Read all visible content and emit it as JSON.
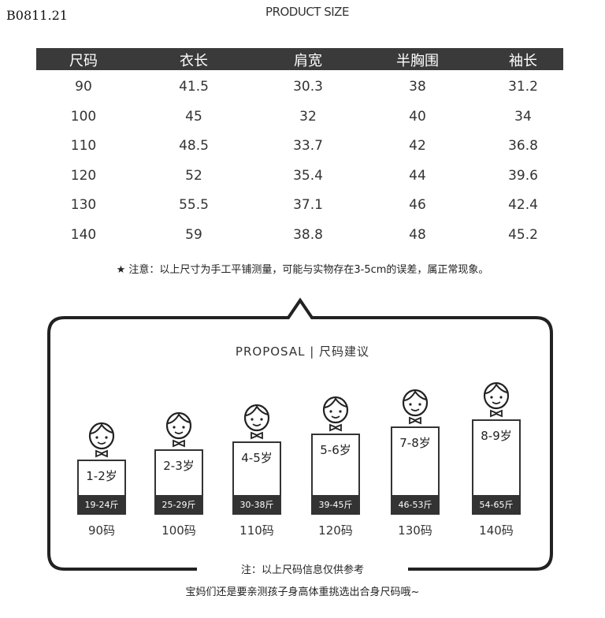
{
  "code": "B0811.21",
  "title": "PRODUCT SIZE",
  "table": {
    "headers": [
      "尺码",
      "衣长",
      "肩宽",
      "半胸围",
      "袖长"
    ],
    "rows": [
      [
        "90",
        "41.5",
        "30.3",
        "38",
        "31.2"
      ],
      [
        "100",
        "45",
        "32",
        "40",
        "34"
      ],
      [
        "110",
        "48.5",
        "33.7",
        "42",
        "36.8"
      ],
      [
        "120",
        "52",
        "35.4",
        "44",
        "39.6"
      ],
      [
        "130",
        "55.5",
        "37.1",
        "46",
        "42.4"
      ],
      [
        "140",
        "59",
        "38.8",
        "48",
        "45.2"
      ]
    ]
  },
  "note": "注意：以上尺寸为手工平铺测量，可能与实物存在3-5cm的误差，属正常现象。",
  "note_icon": "star-icon",
  "proposal_title": "PROPOSAL | 尺码建议",
  "proposals": [
    {
      "age": "1-2岁",
      "weight": "19-24斤",
      "size": "90码"
    },
    {
      "age": "2-3岁",
      "weight": "25-29斤",
      "size": "100码"
    },
    {
      "age": "4-5岁",
      "weight": "30-38斤",
      "size": "110码"
    },
    {
      "age": "5-6岁",
      "weight": "39-45斤",
      "size": "120码"
    },
    {
      "age": "7-8岁",
      "weight": "46-53斤",
      "size": "130码"
    },
    {
      "age": "8-9岁",
      "weight": "54-65斤",
      "size": "140码"
    }
  ],
  "footer_note": "注：以上尺码信息仅供参考",
  "footer_tip": "宝妈们还是要亲测孩子身高体重挑选出合身尺码哦~"
}
